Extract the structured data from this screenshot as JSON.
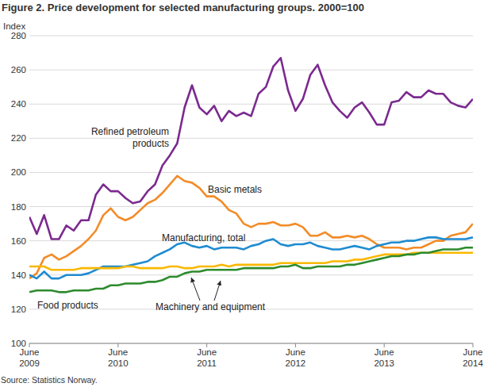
{
  "chart_data": {
    "type": "line",
    "title": "Figure 2. Price development for selected manufacturing groups. 2000=100",
    "y_label": "Index",
    "source": "Source: Statistics Norway.",
    "categories": [
      "June 2009",
      null,
      null,
      null,
      null,
      null,
      null,
      null,
      null,
      null,
      null,
      null,
      "June 2010",
      null,
      null,
      null,
      null,
      null,
      null,
      null,
      null,
      null,
      null,
      null,
      "June 2011",
      null,
      null,
      null,
      null,
      null,
      null,
      null,
      null,
      null,
      null,
      null,
      "June 2012",
      null,
      null,
      null,
      null,
      null,
      null,
      null,
      null,
      null,
      null,
      null,
      "June 2013",
      null,
      null,
      null,
      null,
      null,
      null,
      null,
      null,
      null,
      null,
      null,
      "June 2014"
    ],
    "ylim": [
      100,
      280
    ],
    "yticks": [
      100,
      120,
      140,
      160,
      180,
      200,
      220,
      240,
      260,
      280
    ],
    "grid": true,
    "series": [
      {
        "name": "Refined petroleum products",
        "color": "#7b2a8f",
        "values": [
          174,
          164,
          175,
          161,
          161,
          169,
          166,
          172,
          172,
          187,
          193,
          189,
          189,
          185,
          182,
          183,
          189,
          193,
          204,
          210,
          217,
          238,
          251,
          238,
          234,
          239,
          230,
          236,
          233,
          235,
          233,
          246,
          250,
          262,
          267,
          248,
          236,
          243,
          257,
          263,
          251,
          241,
          236,
          232,
          238,
          241,
          235,
          228,
          228,
          241,
          242,
          247,
          244,
          244,
          248,
          246,
          246,
          241,
          239,
          238,
          243
        ]
      },
      {
        "name": "Basic metals",
        "color": "#f28c28",
        "values": [
          138,
          141,
          150,
          152,
          149,
          151,
          154,
          157,
          161,
          166,
          175,
          179,
          174,
          172,
          174,
          178,
          182,
          184,
          188,
          193,
          198,
          195,
          194,
          191,
          186,
          186,
          183,
          178,
          176,
          170,
          168,
          170,
          170,
          171,
          169,
          169,
          170,
          168,
          163,
          163,
          165,
          162,
          162,
          163,
          162,
          163,
          161,
          158,
          156,
          156,
          156,
          155,
          156,
          156,
          158,
          160,
          160,
          163,
          164,
          165,
          170
        ]
      },
      {
        "name": "Manufacturing, total",
        "color": "#1f8bd1",
        "values": [
          140,
          138,
          142,
          138,
          138,
          140,
          140,
          140,
          141,
          143,
          145,
          145,
          145,
          145,
          146,
          147,
          148,
          151,
          153,
          155,
          158,
          159,
          157,
          156,
          157,
          155,
          156,
          156,
          156,
          155,
          157,
          158,
          160,
          161,
          158,
          157,
          158,
          158,
          159,
          157,
          156,
          155,
          155,
          156,
          157,
          156,
          155,
          157,
          158,
          159,
          159,
          160,
          160,
          161,
          162,
          162,
          161,
          161,
          161,
          161,
          162
        ]
      },
      {
        "name": "Food products",
        "color": "#f9b800",
        "values": [
          145,
          145,
          145,
          143,
          143,
          143,
          143,
          144,
          144,
          144,
          144,
          144,
          144,
          145,
          145,
          144,
          144,
          144,
          144,
          145,
          145,
          144,
          144,
          145,
          145,
          145,
          146,
          145,
          146,
          146,
          146,
          146,
          146,
          146,
          147,
          147,
          147,
          147,
          147,
          147,
          147,
          148,
          148,
          148,
          149,
          149,
          150,
          151,
          152,
          152,
          152,
          152,
          153,
          153,
          153,
          153,
          153,
          153,
          153,
          153,
          153
        ]
      },
      {
        "name": "Machinery and equipment",
        "color": "#2d8b2d",
        "values": [
          130,
          131,
          131,
          131,
          130,
          130,
          131,
          131,
          131,
          132,
          132,
          134,
          134,
          135,
          135,
          135,
          136,
          136,
          137,
          139,
          139,
          141,
          142,
          142,
          143,
          143,
          143,
          143,
          143,
          144,
          144,
          144,
          144,
          144,
          145,
          145,
          146,
          144,
          144,
          145,
          145,
          145,
          145,
          146,
          146,
          147,
          148,
          149,
          150,
          151,
          151,
          152,
          152,
          153,
          153,
          154,
          155,
          155,
          155,
          156,
          156
        ]
      }
    ]
  }
}
